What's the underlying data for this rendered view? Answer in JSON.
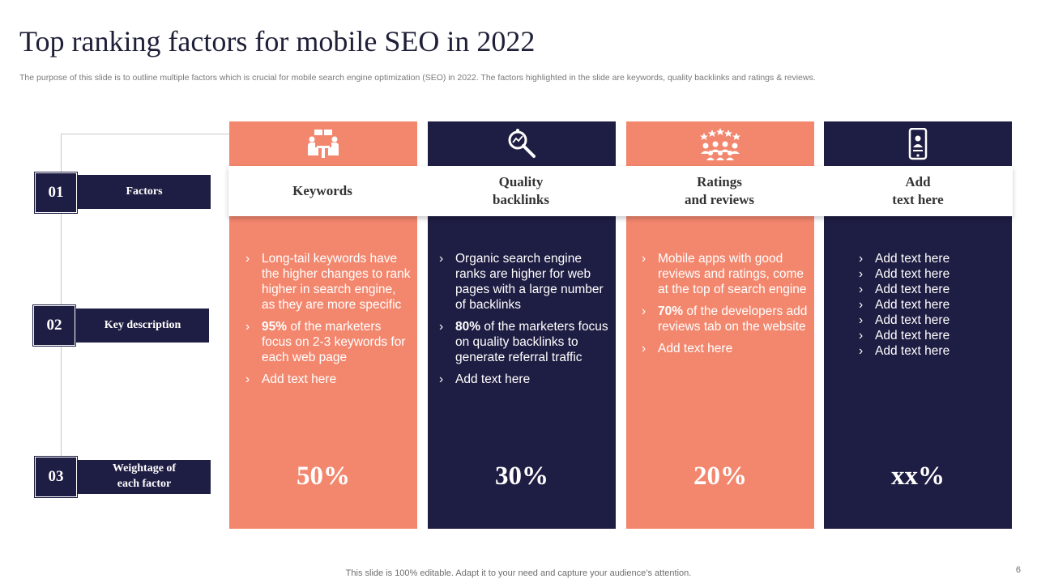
{
  "title": "Top ranking factors for mobile SEO in 2022",
  "subtitle": "The purpose of this slide is to outline multiple factors which is crucial for mobile search engine optimization (SEO) in 2022. The factors highlighted in the slide are keywords, quality backlinks and ratings & reviews.",
  "rows": [
    {
      "num": "01",
      "label": "Factors"
    },
    {
      "num": "02",
      "label": "Key description"
    },
    {
      "num": "03",
      "label_line1": "Weightage of",
      "label_line2": "each factor"
    }
  ],
  "columns": [
    {
      "icon": "meeting-icon",
      "heading_line1": "Keywords",
      "bullets": [
        {
          "text": "Long-tail keywords have the higher changes to rank higher in search engine, as they are more specific"
        },
        {
          "bold": "95%",
          "text": " of the marketers focus on 2-3 keywords for each web page"
        },
        {
          "text": "Add text here"
        }
      ],
      "weight": "50%"
    },
    {
      "icon": "search-analytics-icon",
      "heading_line1": "Quality",
      "heading_line2": "backlinks",
      "bullets": [
        {
          "text": "Organic search engine ranks are higher for web pages with a large number  of backlinks"
        },
        {
          "bold": "80%",
          "text": " of the marketers focus on quality backlinks to generate referral traffic"
        },
        {
          "text": "Add text here"
        }
      ],
      "weight": "30%"
    },
    {
      "icon": "audience-rating-icon",
      "heading_line1": "Ratings",
      "heading_line2": "and reviews",
      "bullets": [
        {
          "text": "Mobile apps with good reviews and ratings, come at the top of search engine"
        },
        {
          "bold": "70%",
          "text": " of the developers add reviews tab on the website"
        },
        {
          "text": "Add text here"
        }
      ],
      "weight": "20%"
    },
    {
      "icon": "mobile-user-icon",
      "heading_line1": "Add",
      "heading_line2": "text here",
      "bullets": [
        {
          "text": "Add text here"
        },
        {
          "text": "Add text here"
        },
        {
          "text": "Add text here"
        },
        {
          "text": "Add text here"
        },
        {
          "text": "Add text here"
        },
        {
          "text": "Add text here"
        },
        {
          "text": "Add text here"
        }
      ],
      "weight": "xx%"
    }
  ],
  "colors": {
    "navy": "#1e1d43",
    "coral": "#f3876e"
  },
  "footer": "This slide is 100% editable. Adapt it to your need and capture your audience’s attention.",
  "page_number": "6"
}
